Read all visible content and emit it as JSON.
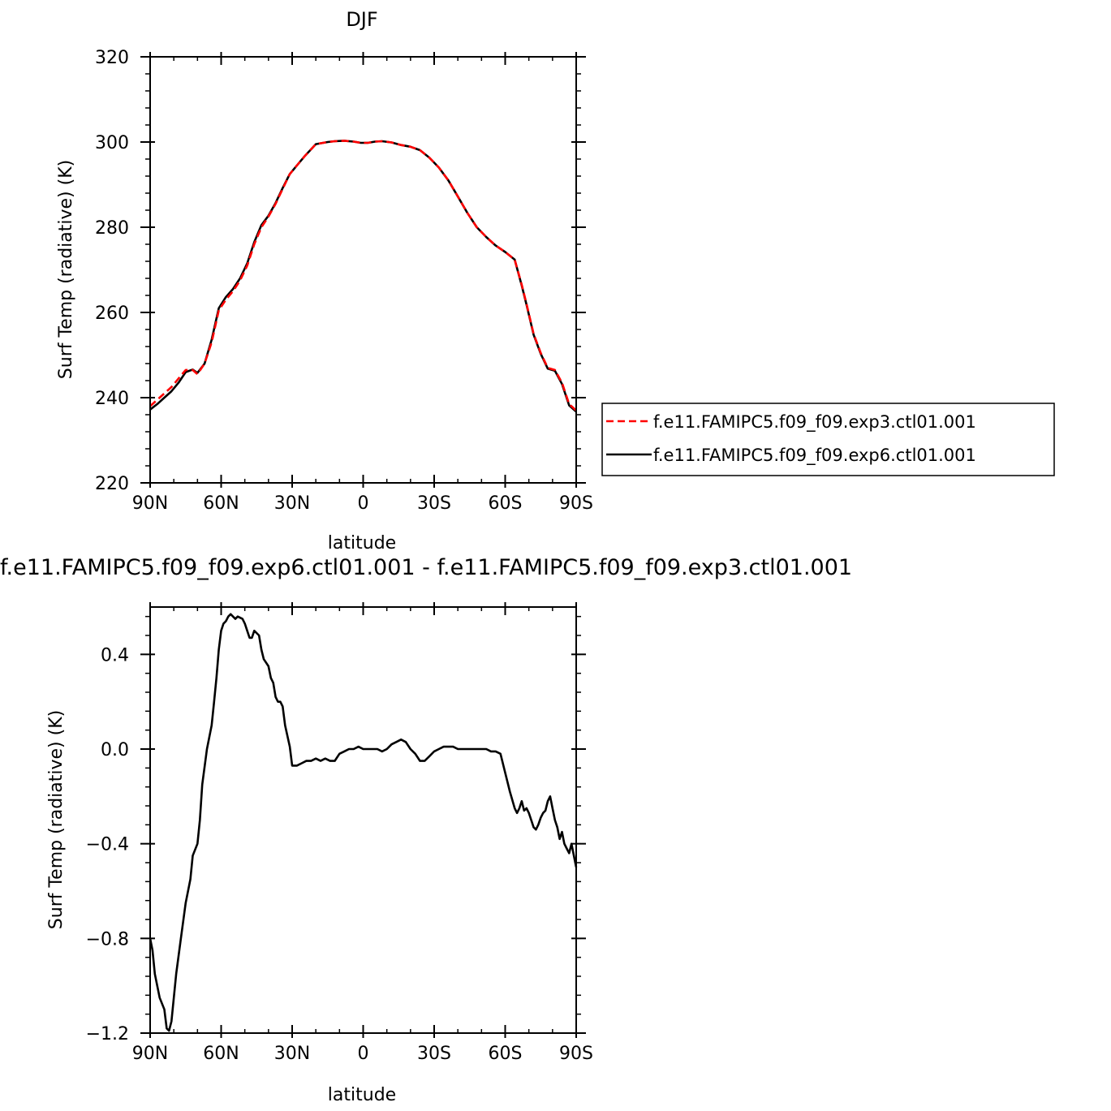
{
  "chart_data": [
    {
      "type": "line",
      "title": "DJF",
      "xlabel": "latitude",
      "ylabel": "Surf Temp (radiative) (K)",
      "x_axis_direction": "north-to-south",
      "xlim": [
        90,
        -90
      ],
      "ylim": [
        220,
        320
      ],
      "xticks": [
        90,
        60,
        30,
        0,
        -30,
        -60,
        -90
      ],
      "xtick_labels": [
        "90N",
        "60N",
        "30N",
        "0",
        "30S",
        "60S",
        "90S"
      ],
      "yticks": [
        220,
        240,
        260,
        280,
        300,
        320
      ],
      "ytick_labels": [
        "220",
        "240",
        "260",
        "280",
        "300",
        "320"
      ],
      "grid": false,
      "legend": "right",
      "series": [
        {
          "name": "f.e11.FAMIPC5.f09_f09.exp3.ctl01.001",
          "color": "#ff0000",
          "dash": "dashed",
          "x": [
            90,
            87,
            84,
            81,
            78,
            75,
            72,
            70,
            67,
            64,
            61,
            58,
            55,
            52,
            49,
            46,
            43,
            40,
            37,
            34,
            31,
            28,
            25,
            20,
            15,
            12,
            8,
            4,
            1,
            -2,
            -5,
            -8,
            -12,
            -16,
            -20,
            -24,
            -28,
            -32,
            -36,
            -40,
            -44,
            -48,
            -52,
            -56,
            -60,
            -64,
            -67,
            -69,
            -72,
            -75,
            -78,
            -81,
            -84,
            -87,
            -90
          ],
          "y": [
            238.0,
            239.5,
            241.0,
            242.5,
            244.5,
            246.5,
            246.5,
            245.5,
            248.0,
            253.0,
            260.5,
            263.0,
            265.0,
            267.5,
            271.0,
            276.0,
            280.0,
            282.5,
            285.5,
            289.0,
            292.5,
            294.5,
            296.5,
            299.5,
            300.0,
            300.2,
            300.3,
            300.1,
            299.8,
            299.8,
            300.1,
            300.2,
            299.9,
            299.3,
            298.9,
            298.1,
            296.3,
            294.0,
            291.0,
            287.2,
            283.4,
            280.0,
            277.7,
            275.7,
            274.2,
            272.4,
            266.5,
            262.0,
            255.0,
            250.5,
            247.0,
            246.5,
            243.5,
            238.5,
            237.0
          ]
        },
        {
          "name": "f.e11.FAMIPC5.f09_f09.exp6.ctl01.001",
          "color": "#000000",
          "dash": "solid",
          "x": [
            90,
            87,
            84,
            81,
            78,
            75,
            72,
            70,
            67,
            64,
            61,
            58,
            55,
            52,
            49,
            46,
            43,
            40,
            37,
            34,
            31,
            28,
            25,
            20,
            15,
            12,
            8,
            4,
            1,
            -2,
            -5,
            -8,
            -12,
            -16,
            -20,
            -24,
            -28,
            -32,
            -36,
            -40,
            -44,
            -48,
            -52,
            -56,
            -60,
            -64,
            -67,
            -69,
            -72,
            -75,
            -78,
            -81,
            -84,
            -87,
            -90
          ],
          "y": [
            237.2,
            238.5,
            240.0,
            241.5,
            243.5,
            246.0,
            246.6,
            245.8,
            248.0,
            253.6,
            261.0,
            263.6,
            265.5,
            268.0,
            271.5,
            276.5,
            280.5,
            282.7,
            285.7,
            289.2,
            292.5,
            294.5,
            296.5,
            299.5,
            300.0,
            300.2,
            300.3,
            300.1,
            299.8,
            299.8,
            300.1,
            300.2,
            299.9,
            299.3,
            298.9,
            298.1,
            296.3,
            294.0,
            291.0,
            287.2,
            283.4,
            280.0,
            277.7,
            275.7,
            274.2,
            272.4,
            266.3,
            261.8,
            254.8,
            250.3,
            246.8,
            246.3,
            243.2,
            238.2,
            236.7
          ]
        }
      ]
    },
    {
      "type": "line",
      "title": "f.e11.FAMIPC5.f09_f09.exp6.ctl01.001 - f.e11.FAMIPC5.f09_f09.exp3.ctl01.001",
      "xlabel": "latitude",
      "ylabel": "Surf Temp (radiative) (K)",
      "x_axis_direction": "north-to-south",
      "xlim": [
        90,
        -90
      ],
      "ylim": [
        -1.2,
        0.6
      ],
      "xticks": [
        90,
        60,
        30,
        0,
        -30,
        -60,
        -90
      ],
      "xtick_labels": [
        "90N",
        "60N",
        "30N",
        "0",
        "30S",
        "60S",
        "90S"
      ],
      "yticks": [
        -1.2,
        -0.8,
        -0.4,
        0.0,
        0.4
      ],
      "ytick_labels": [
        "−1.2",
        "−0.8",
        "−0.4",
        "0.0",
        "0.4"
      ],
      "grid": false,
      "series": [
        {
          "color": "#000000",
          "dash": "solid",
          "x": [
            90,
            89,
            88,
            86,
            84,
            83,
            82,
            81,
            80,
            79,
            77,
            75,
            73,
            72,
            70,
            69,
            68,
            66,
            64,
            63,
            62,
            61,
            60,
            59,
            58,
            57,
            56,
            55,
            54,
            53,
            51,
            50,
            49,
            48,
            47,
            46,
            44,
            43,
            42,
            40,
            39,
            38,
            37,
            36,
            35,
            34,
            33,
            31,
            30,
            28,
            26,
            24,
            22,
            20,
            18,
            16,
            14,
            12,
            10,
            8,
            6,
            4,
            2,
            0,
            -2,
            -4,
            -6,
            -8,
            -10,
            -12,
            -14,
            -16,
            -18,
            -20,
            -22,
            -24,
            -26,
            -28,
            -30,
            -32,
            -34,
            -36,
            -38,
            -40,
            -42,
            -44,
            -46,
            -48,
            -50,
            -52,
            -54,
            -56,
            -58,
            -60,
            -62,
            -64,
            -65,
            -66,
            -67,
            -68,
            -69,
            -70,
            -71,
            -72,
            -73,
            -74,
            -75,
            -76,
            -77,
            -78,
            -79,
            -80,
            -81,
            -82,
            -83,
            -84,
            -85,
            -86,
            -87,
            -88,
            -89,
            -90
          ],
          "y": [
            -0.8,
            -0.85,
            -0.95,
            -1.05,
            -1.1,
            -1.18,
            -1.19,
            -1.15,
            -1.05,
            -0.95,
            -0.8,
            -0.65,
            -0.55,
            -0.45,
            -0.4,
            -0.3,
            -0.15,
            0.0,
            0.1,
            0.2,
            0.3,
            0.42,
            0.5,
            0.53,
            0.54,
            0.56,
            0.57,
            0.56,
            0.55,
            0.56,
            0.55,
            0.53,
            0.5,
            0.47,
            0.47,
            0.5,
            0.48,
            0.42,
            0.38,
            0.35,
            0.3,
            0.28,
            0.22,
            0.2,
            0.2,
            0.18,
            0.1,
            0.01,
            -0.07,
            -0.07,
            -0.06,
            -0.05,
            -0.05,
            -0.04,
            -0.05,
            -0.04,
            -0.05,
            -0.05,
            -0.02,
            -0.01,
            0.0,
            0.0,
            0.01,
            0.0,
            0.0,
            0.0,
            0.0,
            -0.01,
            0.0,
            0.02,
            0.03,
            0.04,
            0.03,
            0.0,
            -0.02,
            -0.05,
            -0.05,
            -0.03,
            -0.01,
            0.0,
            0.01,
            0.01,
            0.01,
            0.0,
            0.0,
            0.0,
            0.0,
            0.0,
            0.0,
            0.0,
            -0.01,
            -0.01,
            -0.02,
            -0.1,
            -0.18,
            -0.25,
            -0.27,
            -0.25,
            -0.22,
            -0.26,
            -0.25,
            -0.27,
            -0.3,
            -0.33,
            -0.34,
            -0.32,
            -0.29,
            -0.27,
            -0.26,
            -0.22,
            -0.2,
            -0.25,
            -0.3,
            -0.33,
            -0.38,
            -0.35,
            -0.4,
            -0.42,
            -0.44,
            -0.4,
            -0.45,
            -0.5
          ]
        }
      ]
    }
  ]
}
